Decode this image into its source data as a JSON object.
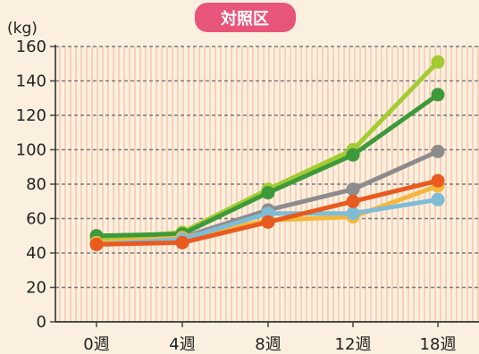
{
  "chart_data": {
    "type": "line",
    "title": "対照区",
    "title_color": "#e8557a",
    "ylabel": "(kg)",
    "xlabel": "",
    "categories": [
      "0週",
      "4週",
      "8週",
      "12週",
      "18週"
    ],
    "yticks": [
      "0",
      "20",
      "40",
      "60",
      "80",
      "100",
      "120",
      "140",
      "160"
    ],
    "ylim": [
      0,
      160
    ],
    "grid": true,
    "legend": "none",
    "series": [
      {
        "color": "#a3cc33",
        "values": [
          48,
          52,
          77,
          100,
          151
        ]
      },
      {
        "color": "#3d9a3a",
        "values": [
          50,
          51,
          75,
          97,
          132
        ]
      },
      {
        "color": "#8c8c8c",
        "values": [
          45,
          49,
          65,
          77,
          99
        ]
      },
      {
        "color": "#f5b73b",
        "values": [
          46,
          49,
          59,
          61,
          79
        ]
      },
      {
        "color": "#7fbcd6",
        "values": [
          45,
          48,
          63,
          63,
          71
        ]
      },
      {
        "color": "#e85a1e",
        "values": [
          45,
          46,
          58,
          70,
          82
        ]
      }
    ]
  }
}
